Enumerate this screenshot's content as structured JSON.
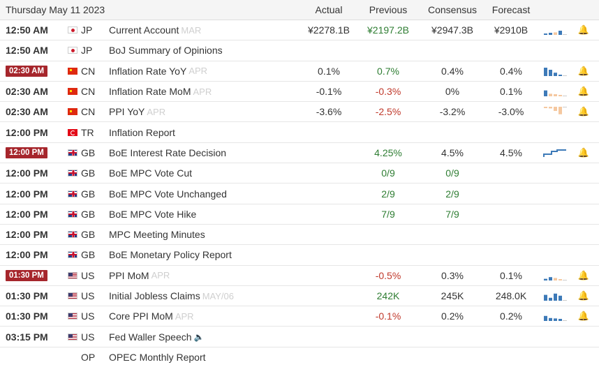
{
  "header": {
    "date": "Thursday May 11 2023",
    "actual": "Actual",
    "previous": "Previous",
    "consensus": "Consensus",
    "forecast": "Forecast"
  },
  "colors": {
    "positive": "#2e7d32",
    "negative": "#c0392b",
    "time_badge": "#a6262c",
    "spark_blue": "#3d7ab8",
    "spark_peach": "#f5c8a0"
  },
  "events": [
    {
      "time": "12:50 AM",
      "highlight": false,
      "flag": "jp",
      "country": "JP",
      "event": "Current Account",
      "ref": "MAR",
      "speech": false,
      "actual": "¥2278.1B",
      "actual_class": "",
      "previous": "¥2197.2B",
      "previous_class": "pos",
      "consensus": "¥2947.3B",
      "consensus_class": "",
      "forecast": "¥2910B",
      "forecast_class": "",
      "spark": "bars",
      "bars": [
        {
          "v": 0.15,
          "c": "b"
        },
        {
          "v": 0.25,
          "c": "b"
        },
        {
          "v": 0.3,
          "c": "p"
        },
        {
          "v": 0.5,
          "c": "b"
        }
      ]
    },
    {
      "time": "12:50 AM",
      "highlight": false,
      "flag": "jp",
      "country": "JP",
      "event": "BoJ Summary of Opinions",
      "ref": "",
      "speech": false,
      "actual": "",
      "actual_class": "",
      "previous": "",
      "previous_class": "",
      "consensus": "",
      "consensus_class": "",
      "forecast": "",
      "forecast_class": "",
      "spark": "none",
      "bars": []
    },
    {
      "time": "02:30 AM",
      "highlight": true,
      "flag": "cn",
      "country": "CN",
      "event": "Inflation Rate YoY",
      "ref": "APR",
      "speech": false,
      "actual": "0.1%",
      "actual_class": "",
      "previous": "0.7%",
      "previous_class": "pos",
      "consensus": "0.4%",
      "consensus_class": "",
      "forecast": "0.4%",
      "forecast_class": "",
      "spark": "bars",
      "bars": [
        {
          "v": 1,
          "c": "b"
        },
        {
          "v": 0.75,
          "c": "b"
        },
        {
          "v": 0.4,
          "c": "b"
        },
        {
          "v": 0.1,
          "c": "b"
        }
      ]
    },
    {
      "time": "02:30 AM",
      "highlight": false,
      "flag": "cn",
      "country": "CN",
      "event": "Inflation Rate MoM",
      "ref": "APR",
      "speech": false,
      "actual": "-0.1%",
      "actual_class": "",
      "previous": "-0.3%",
      "previous_class": "neg",
      "consensus": "0%",
      "consensus_class": "",
      "forecast": "0.1%",
      "forecast_class": "",
      "spark": "bars",
      "bars": [
        {
          "v": 0.7,
          "c": "b"
        },
        {
          "v": 0.3,
          "c": "p"
        },
        {
          "v": 0.25,
          "c": "p"
        },
        {
          "v": 0.1,
          "c": "p"
        }
      ]
    },
    {
      "time": "02:30 AM",
      "highlight": false,
      "flag": "cn",
      "country": "CN",
      "event": "PPI YoY",
      "ref": "APR",
      "speech": false,
      "actual": "-3.6%",
      "actual_class": "",
      "previous": "-2.5%",
      "previous_class": "neg",
      "consensus": "-3.2%",
      "consensus_class": "",
      "forecast": "-3.0%",
      "forecast_class": "",
      "spark": "bars_down",
      "bars": [
        {
          "v": 0.15,
          "c": "p"
        },
        {
          "v": 0.2,
          "c": "p"
        },
        {
          "v": 0.5,
          "c": "p"
        },
        {
          "v": 0.9,
          "c": "p"
        }
      ]
    },
    {
      "time": "12:00 PM",
      "highlight": false,
      "flag": "tr",
      "country": "TR",
      "event": "Inflation Report",
      "ref": "",
      "speech": false,
      "actual": "",
      "actual_class": "",
      "previous": "",
      "previous_class": "",
      "consensus": "",
      "consensus_class": "",
      "forecast": "",
      "forecast_class": "",
      "spark": "none",
      "bars": []
    },
    {
      "time": "12:00 PM",
      "highlight": true,
      "flag": "gb",
      "country": "GB",
      "event": "BoE Interest Rate Decision",
      "ref": "",
      "speech": false,
      "actual": "",
      "actual_class": "",
      "previous": "4.25%",
      "previous_class": "pos",
      "consensus": "4.5%",
      "consensus_class": "",
      "forecast": "4.5%",
      "forecast_class": "",
      "spark": "step",
      "bars": []
    },
    {
      "time": "12:00 PM",
      "highlight": false,
      "flag": "gb",
      "country": "GB",
      "event": "BoE MPC Vote Cut",
      "ref": "",
      "speech": false,
      "actual": "",
      "actual_class": "",
      "previous": "0/9",
      "previous_class": "pos",
      "consensus": "0/9",
      "consensus_class": "pos",
      "forecast": "",
      "forecast_class": "",
      "spark": "none",
      "bars": []
    },
    {
      "time": "12:00 PM",
      "highlight": false,
      "flag": "gb",
      "country": "GB",
      "event": "BoE MPC Vote Unchanged",
      "ref": "",
      "speech": false,
      "actual": "",
      "actual_class": "",
      "previous": "2/9",
      "previous_class": "pos",
      "consensus": "2/9",
      "consensus_class": "pos",
      "forecast": "",
      "forecast_class": "",
      "spark": "none",
      "bars": []
    },
    {
      "time": "12:00 PM",
      "highlight": false,
      "flag": "gb",
      "country": "GB",
      "event": "BoE MPC Vote Hike",
      "ref": "",
      "speech": false,
      "actual": "",
      "actual_class": "",
      "previous": "7/9",
      "previous_class": "pos",
      "consensus": "7/9",
      "consensus_class": "pos",
      "forecast": "",
      "forecast_class": "",
      "spark": "none",
      "bars": []
    },
    {
      "time": "12:00 PM",
      "highlight": false,
      "flag": "gb",
      "country": "GB",
      "event": "MPC Meeting Minutes",
      "ref": "",
      "speech": false,
      "actual": "",
      "actual_class": "",
      "previous": "",
      "previous_class": "",
      "consensus": "",
      "consensus_class": "",
      "forecast": "",
      "forecast_class": "",
      "spark": "none",
      "bars": []
    },
    {
      "time": "12:00 PM",
      "highlight": false,
      "flag": "gb",
      "country": "GB",
      "event": "BoE Monetary Policy Report",
      "ref": "",
      "speech": false,
      "actual": "",
      "actual_class": "",
      "previous": "",
      "previous_class": "",
      "consensus": "",
      "consensus_class": "",
      "forecast": "",
      "forecast_class": "",
      "spark": "none",
      "bars": []
    },
    {
      "time": "01:30 PM",
      "highlight": true,
      "flag": "us",
      "country": "US",
      "event": "PPI MoM",
      "ref": "APR",
      "speech": false,
      "actual": "",
      "actual_class": "",
      "previous": "-0.5%",
      "previous_class": "neg",
      "consensus": "0.3%",
      "consensus_class": "",
      "forecast": "0.1%",
      "forecast_class": "",
      "spark": "bars",
      "bars": [
        {
          "v": 0.2,
          "c": "b"
        },
        {
          "v": 0.4,
          "c": "b"
        },
        {
          "v": 0.3,
          "c": "p"
        },
        {
          "v": 0.1,
          "c": "p"
        }
      ]
    },
    {
      "time": "01:30 PM",
      "highlight": false,
      "flag": "us",
      "country": "US",
      "event": "Initial Jobless Claims",
      "ref": "MAY/06",
      "speech": false,
      "actual": "",
      "actual_class": "",
      "previous": "242K",
      "previous_class": "pos",
      "consensus": "245K",
      "consensus_class": "",
      "forecast": "248.0K",
      "forecast_class": "",
      "spark": "bars",
      "bars": [
        {
          "v": 0.7,
          "c": "b"
        },
        {
          "v": 0.35,
          "c": "b"
        },
        {
          "v": 0.85,
          "c": "b"
        },
        {
          "v": 0.6,
          "c": "b"
        }
      ]
    },
    {
      "time": "01:30 PM",
      "highlight": false,
      "flag": "us",
      "country": "US",
      "event": "Core PPI MoM",
      "ref": "APR",
      "speech": false,
      "actual": "",
      "actual_class": "",
      "previous": "-0.1%",
      "previous_class": "neg",
      "consensus": "0.2%",
      "consensus_class": "",
      "forecast": "0.2%",
      "forecast_class": "",
      "spark": "bars",
      "bars": [
        {
          "v": 0.6,
          "c": "b"
        },
        {
          "v": 0.35,
          "c": "b"
        },
        {
          "v": 0.3,
          "c": "b"
        },
        {
          "v": 0.25,
          "c": "b"
        }
      ]
    },
    {
      "time": "03:15 PM",
      "highlight": false,
      "flag": "us",
      "country": "US",
      "event": "Fed Waller Speech",
      "ref": "",
      "speech": true,
      "actual": "",
      "actual_class": "",
      "previous": "",
      "previous_class": "",
      "consensus": "",
      "consensus_class": "",
      "forecast": "",
      "forecast_class": "",
      "spark": "none",
      "bars": []
    },
    {
      "time": "",
      "highlight": false,
      "flag": "",
      "country": "OP",
      "event": "OPEC Monthly Report",
      "ref": "",
      "speech": false,
      "actual": "",
      "actual_class": "",
      "previous": "",
      "previous_class": "",
      "consensus": "",
      "consensus_class": "",
      "forecast": "",
      "forecast_class": "",
      "spark": "none",
      "bars": []
    }
  ]
}
